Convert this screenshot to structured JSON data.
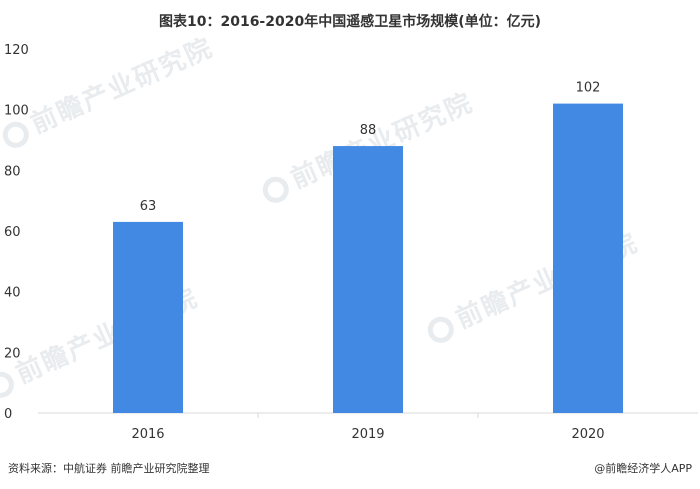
{
  "title": "图表10：2016-2020年中国遥感卫星市场规模(单位：亿元)",
  "source": "资料来源：中航证券 前瞻产业研究院整理",
  "brand": "@前瞻经济学人APP",
  "watermark": "前瞻产业研究院",
  "colors": {
    "bar": "#4189e2",
    "axis": "#d9d9d9",
    "text": "#333333"
  },
  "chart_data": {
    "type": "bar",
    "title": "图表10：2016-2020年中国遥感卫星市场规模(单位：亿元)",
    "categories": [
      "2016",
      "2019",
      "2020"
    ],
    "values": [
      63,
      88,
      102
    ],
    "ylim": [
      0,
      120
    ],
    "yticks": [
      0,
      20,
      40,
      60,
      80,
      100,
      120
    ],
    "xlabel": "",
    "ylabel": "",
    "grid": false,
    "legend": "none",
    "data_labels": true
  }
}
